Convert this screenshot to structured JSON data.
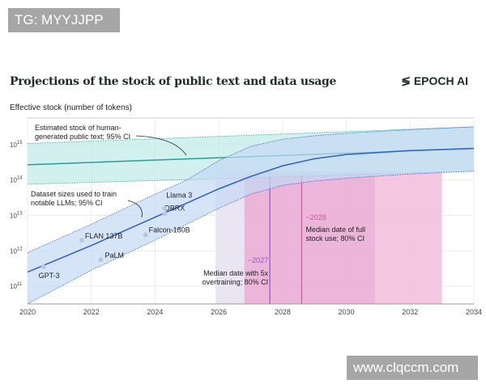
{
  "watermark_top": "TG: MYYJJPP",
  "watermark_bottom": "www.clqccm.com",
  "logo": "EPOCH AI",
  "chart_data": {
    "type": "line",
    "title": "Projections of the stock of public text and data usage",
    "ylabel": "Effective stock (number of tokens)",
    "xlabel": "",
    "xlim": [
      2020,
      2034
    ],
    "ylim_log10": [
      10.5,
      15.75
    ],
    "yscale": "log",
    "xticks": [
      "2020",
      "2022",
      "2024",
      "2026",
      "2028",
      "2030",
      "2032",
      "2034"
    ],
    "yticks": [
      {
        "exp": 11,
        "label": "10",
        "sup": "11"
      },
      {
        "exp": 12,
        "label": "10",
        "sup": "12"
      },
      {
        "exp": 13,
        "label": "10",
        "sup": "13"
      },
      {
        "exp": 14,
        "label": "10",
        "sup": "14"
      },
      {
        "exp": 15,
        "label": "10",
        "sup": "15"
      }
    ],
    "grid": true,
    "series": [
      {
        "name": "Estimated stock of human-generated public text; 95% CI",
        "color": "#2a9d98",
        "band_color": "#bfe9e6",
        "x": [
          2020,
          2034
        ],
        "log10_median": [
          14.43,
          14.89
        ],
        "log10_lower": [
          13.88,
          14.25
        ],
        "log10_upper": [
          15.03,
          15.5
        ]
      },
      {
        "name": "Dataset sizes used to train notable LLMs; 95% CI",
        "color": "#2f5fbf",
        "band_color": "#c4d8f5",
        "x": [
          2020,
          2022,
          2024,
          2025,
          2026,
          2027,
          2028,
          2029,
          2030,
          2032,
          2034
        ],
        "log10_median": [
          11.4,
          12.15,
          12.95,
          13.35,
          13.75,
          14.1,
          14.4,
          14.6,
          14.72,
          14.83,
          14.89
        ],
        "log10_lower": [
          10.5,
          11.45,
          12.3,
          12.75,
          13.2,
          13.6,
          13.85,
          13.97,
          14.05,
          14.17,
          14.25
        ],
        "log10_upper": [
          11.95,
          12.75,
          13.6,
          14.0,
          14.55,
          14.95,
          15.15,
          15.25,
          15.32,
          15.42,
          15.5
        ]
      }
    ],
    "points": [
      {
        "label": "GPT-3",
        "x": 2020.5,
        "log10": 11.55
      },
      {
        "label": "FLAN 137B",
        "x": 2021.7,
        "log10": 12.3
      },
      {
        "label": "PaLM",
        "x": 2022.3,
        "log10": 11.75
      },
      {
        "label": "Falcon-180B",
        "x": 2023.7,
        "log10": 12.45
      },
      {
        "label": "DBRX",
        "x": 2024.3,
        "log10": 13.05
      },
      {
        "label": "Llama 3",
        "x": 2024.3,
        "log10": 13.2
      }
    ],
    "regions": [
      {
        "name": "overtraining CI",
        "x0": 2025.9,
        "x1": 2026.8,
        "color": "#e6e0f0"
      },
      {
        "name": "overlap CI",
        "x0": 2026.8,
        "x1": 2030.9,
        "color": "#e7a9d2"
      },
      {
        "name": "full stock use CI",
        "x0": 2030.9,
        "x1": 2033.0,
        "color": "#f3bcdc"
      }
    ],
    "annotations": [
      {
        "text": "~2027",
        "line2": "",
        "x": 2027.6,
        "color": "#9a4fd0",
        "desc1": "Median date with 5x",
        "desc2": "overtraining; 80% CI"
      },
      {
        "text": "~2028",
        "x": 2028.6,
        "color": "#d4559e",
        "desc1": "Median date of full",
        "desc2": "stock use; 80% CI"
      }
    ],
    "labels": {
      "stock1": "Estimated stock of human-",
      "stock2": "generated public text; 95% CI",
      "data1": "Dataset sizes used to train",
      "data2": "notable LLMs; 95% CI"
    }
  }
}
